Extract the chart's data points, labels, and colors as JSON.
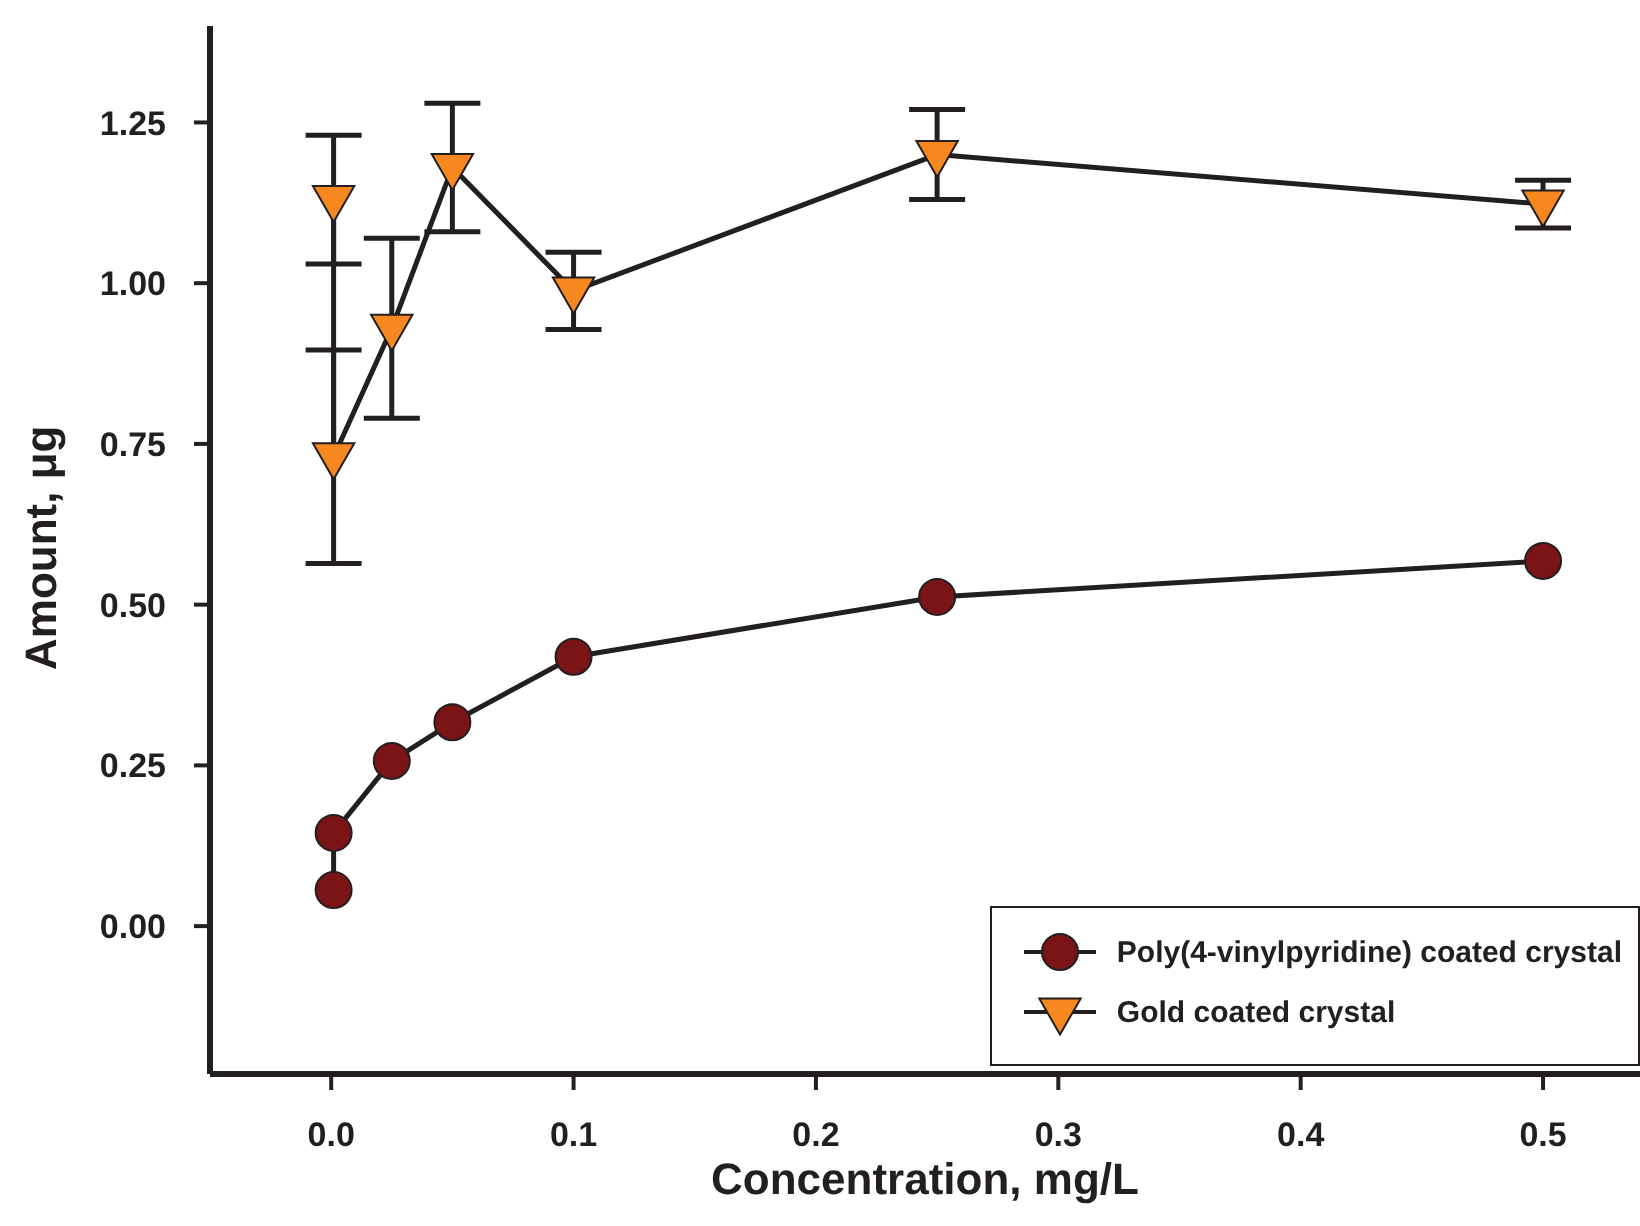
{
  "chart_data": {
    "type": "line",
    "xlabel": "Concentration, mg/L",
    "ylabel": "Amount, μg",
    "xlim": [
      -0.05,
      0.54
    ],
    "ylim": [
      -0.23,
      1.4
    ],
    "xticks": [
      {
        "value": 0,
        "label": "0.0"
      },
      0.1,
      0.2,
      0.3,
      0.4,
      0.5
    ],
    "yticks": [
      {
        "value": 0,
        "label": "0.00"
      },
      0.25,
      {
        "value": 0.5,
        "label": "0.50"
      },
      0.75,
      {
        "value": 1,
        "label": "1.00"
      },
      1.25
    ],
    "grid": false,
    "legend": "bottom right",
    "line_style": "solid",
    "series": [
      {
        "name": "Poly(4-vinylpyridine) coated crystal",
        "marker": "circle",
        "color": "#7b1416",
        "x": [
          0.001,
          0.001,
          0.025,
          0.05,
          0.1,
          0.25,
          0.5
        ],
        "values": [
          0.056,
          0.145,
          0.257,
          0.317,
          0.419,
          0.512,
          0.568
        ]
      },
      {
        "name": "Gold coated crystal",
        "marker": "triangle",
        "color": "#f7881f",
        "x": [
          0.001,
          0.001,
          0.025,
          0.05,
          0.1,
          0.25,
          0.5
        ],
        "values": [
          1.13,
          0.73,
          0.93,
          1.18,
          0.988,
          1.2,
          1.123
        ],
        "errors": [
          0.1,
          0.166,
          0.14,
          0.1,
          0.06,
          0.07,
          0.037
        ]
      }
    ]
  }
}
